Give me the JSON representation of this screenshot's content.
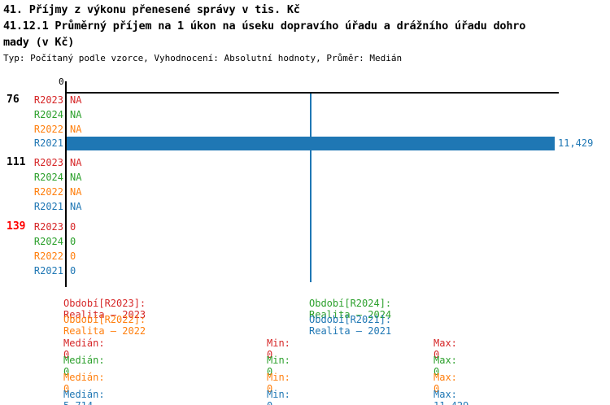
{
  "header": {
    "title_line1": "41. Příjmy z výkonu přenesené správy v tis. Kč",
    "title_line2": "41.12.1 Průměrný příjem na 1 úkon na úseku dopravího úřadu a drážního úřadu dohro",
    "title_line3": "mady (v Kč)",
    "meta": "Typ: Počítaný podle vzorce, Vyhodnocení: Absolutní hodnoty, Průměr: Medián"
  },
  "colors": {
    "r2023": "#D62728",
    "r2024": "#2CA02C",
    "r2022": "#FF7F0E",
    "r2021": "#1F77B4",
    "alert": "#FF0000",
    "axis": "#000000"
  },
  "chart_data": {
    "type": "bar",
    "orientation": "horizontal",
    "axis": {
      "tick_zero": "0",
      "x_min": 0,
      "x_max": 11429,
      "grid": false
    },
    "groups": [
      {
        "id": "76",
        "id_color": "black",
        "rows": [
          {
            "series": "R2023",
            "value": null,
            "display": "NA"
          },
          {
            "series": "R2024",
            "value": null,
            "display": "NA"
          },
          {
            "series": "R2022",
            "value": null,
            "display": "NA"
          },
          {
            "series": "R2021",
            "value": 11429,
            "display": "11,429"
          }
        ]
      },
      {
        "id": "111",
        "id_color": "black",
        "rows": [
          {
            "series": "R2023",
            "value": null,
            "display": "NA"
          },
          {
            "series": "R2024",
            "value": null,
            "display": "NA"
          },
          {
            "series": "R2022",
            "value": null,
            "display": "NA"
          },
          {
            "series": "R2021",
            "value": null,
            "display": "NA"
          }
        ]
      },
      {
        "id": "139",
        "id_color": "red",
        "rows": [
          {
            "series": "R2023",
            "value": 0,
            "display": "0"
          },
          {
            "series": "R2024",
            "value": 0,
            "display": "0"
          },
          {
            "series": "R2022",
            "value": 0,
            "display": "0"
          },
          {
            "series": "R2021",
            "value": 0,
            "display": "0"
          }
        ]
      }
    ],
    "median_marker": {
      "series": "R2021",
      "value": 5714
    },
    "stats": [
      {
        "series": "R2023",
        "median": 0,
        "min": 0,
        "max": 0
      },
      {
        "series": "R2024",
        "median": 0,
        "min": 0,
        "max": 0
      },
      {
        "series": "R2022",
        "median": 0,
        "min": 0,
        "max": 0
      },
      {
        "series": "R2021",
        "median": 5714,
        "min": 0,
        "max": 11429
      }
    ]
  },
  "legend": {
    "items": [
      {
        "key": "R2023",
        "label": "Období[R2023]: Realita – 2023"
      },
      {
        "key": "R2024",
        "label": "Období[R2024]: Realita – 2024"
      },
      {
        "key": "R2022",
        "label": "Období[R2022]: Realita – 2022"
      },
      {
        "key": "R2021",
        "label": "Období[R2021]: Realita – 2021"
      }
    ]
  },
  "stats_display": {
    "rows": [
      {
        "series": "R2023",
        "median": "Medián: 0",
        "min": "Min: 0",
        "max": "Max: 0"
      },
      {
        "series": "R2024",
        "median": "Medián: 0",
        "min": "Min: 0",
        "max": "Max: 0"
      },
      {
        "series": "R2022",
        "median": "Medián: 0",
        "min": "Min: 0",
        "max": "Max: 0"
      },
      {
        "series": "R2021",
        "median": "Medián: 5,714",
        "min": "Min: 0",
        "max": "Max: 11,429"
      }
    ]
  }
}
